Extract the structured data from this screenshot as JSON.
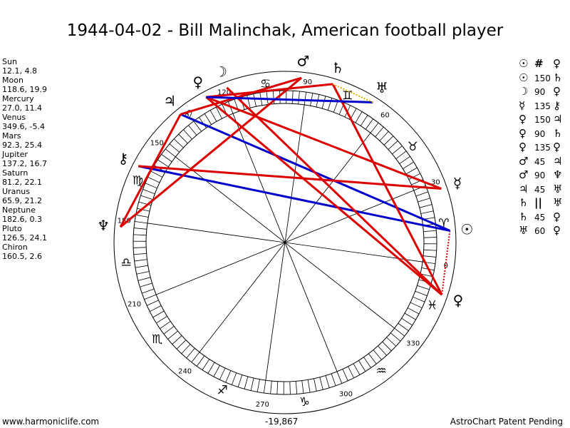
{
  "title": "1944-04-02 - Bill Malinchak, American football player",
  "planets": [
    {
      "name": "Sun",
      "pos": "12.1, 4.8",
      "lon": 12.1,
      "glyph": "☉"
    },
    {
      "name": "Moon",
      "pos": "118.6, 19.9",
      "lon": 118.6,
      "glyph": "☽"
    },
    {
      "name": "Mercury",
      "pos": "27.0, 11.4",
      "lon": 27.0,
      "glyph": "☿"
    },
    {
      "name": "Venus",
      "pos": "349.6, -5.4",
      "lon": 349.6,
      "glyph": "♀"
    },
    {
      "name": "Mars",
      "pos": "92.3, 25.4",
      "lon": 92.3,
      "glyph": "♂"
    },
    {
      "name": "Jupiter",
      "pos": "137.2, 16.7",
      "lon": 137.2,
      "glyph": "♃"
    },
    {
      "name": "Saturn",
      "pos": "81.2, 22.1",
      "lon": 81.2,
      "glyph": "♄"
    },
    {
      "name": "Uranus",
      "pos": "65.9, 21.2",
      "lon": 65.9,
      "glyph": "♅"
    },
    {
      "name": "Neptune",
      "pos": "182.6, 0.3",
      "lon": 182.6,
      "glyph": "♆"
    },
    {
      "name": "Pluto",
      "pos": "126.5, 24.1",
      "lon": 126.5,
      "glyph": "♀"
    },
    {
      "name": "Chiron",
      "pos": "160.5, 2.6",
      "lon": 160.5,
      "glyph": "⚷"
    }
  ],
  "aspects": [
    {
      "g1": "☉",
      "n": "#",
      "g2": "♀",
      "sym": true
    },
    {
      "g1": "☉",
      "n": "150",
      "g2": "♄",
      "sym": false
    },
    {
      "g1": "☽",
      "n": "90",
      "g2": "♀",
      "sym": false
    },
    {
      "g1": "☿",
      "n": "135",
      "g2": "⚷",
      "sym": false
    },
    {
      "g1": "♀",
      "n": "150",
      "g2": "♃",
      "sym": false
    },
    {
      "g1": "♀",
      "n": "90",
      "g2": "♄",
      "sym": false
    },
    {
      "g1": "♀",
      "n": "135",
      "g2": "♀",
      "sym": false
    },
    {
      "g1": "♂",
      "n": "45",
      "g2": "♃",
      "sym": false
    },
    {
      "g1": "♂",
      "n": "90",
      "g2": "♆",
      "sym": false
    },
    {
      "g1": "♃",
      "n": "45",
      "g2": "♅",
      "sym": false
    },
    {
      "g1": "♄",
      "n": "||",
      "g2": "♅",
      "sym": true
    },
    {
      "g1": "♄",
      "n": "45",
      "g2": "♀",
      "sym": false
    },
    {
      "g1": "♅",
      "n": "60",
      "g2": "♀",
      "sym": false
    }
  ],
  "degree_labels": [
    "0",
    "30",
    "60",
    "90",
    "120",
    "150",
    "180",
    "210",
    "240",
    "270",
    "300",
    "330"
  ],
  "sign_glyphs": [
    "♈",
    "♉",
    "♊",
    "♋",
    "♌",
    "♍",
    "♎",
    "♏",
    "♐",
    "♑",
    "♒",
    "♓"
  ],
  "aspect_lines": [
    {
      "from": 12.1,
      "to": 349.6,
      "color": "#cc0000",
      "style": "dotted"
    },
    {
      "from": 12.1,
      "to": 160.5,
      "color": "#0000cc",
      "style": "solid"
    },
    {
      "from": 12.1,
      "to": 137.2,
      "color": "#0000cc",
      "style": "solid"
    },
    {
      "from": 349.6,
      "to": 81.2,
      "color": "#dd0000",
      "style": "solid"
    },
    {
      "from": 349.6,
      "to": 118.6,
      "color": "#dd0000",
      "style": "solid"
    },
    {
      "from": 349.6,
      "to": 126.5,
      "color": "#dd0000",
      "style": "solid"
    },
    {
      "from": 27.0,
      "to": 160.5,
      "color": "#dd0000",
      "style": "solid"
    },
    {
      "from": 27.0,
      "to": 126.5,
      "color": "#dd0000",
      "style": "solid"
    },
    {
      "from": 92.3,
      "to": 137.2,
      "color": "#dd0000",
      "style": "solid"
    },
    {
      "from": 92.3,
      "to": 182.6,
      "color": "#dd0000",
      "style": "solid"
    },
    {
      "from": 137.2,
      "to": 182.6,
      "color": "#dd0000",
      "style": "solid"
    },
    {
      "from": 81.2,
      "to": 126.5,
      "color": "#dd0000",
      "style": "solid"
    },
    {
      "from": 65.9,
      "to": 126.5,
      "color": "#0000cc",
      "style": "solid"
    },
    {
      "from": 65.9,
      "to": 81.2,
      "color": "#ddaa00",
      "style": "dotted"
    }
  ],
  "colors": {
    "red": "#dd0000",
    "blue": "#0000cc",
    "yellow": "#ddaa00"
  },
  "footer": {
    "website": "www.harmoniclife.com",
    "center_value": "-19,867",
    "patent": "AstroChart Patent Pending"
  }
}
